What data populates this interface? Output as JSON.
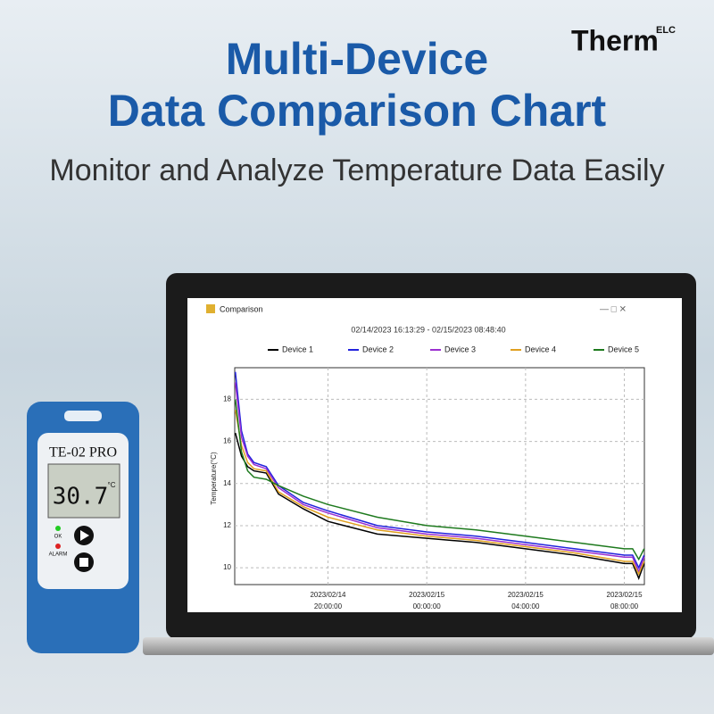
{
  "header": {
    "title_line1": "Multi-Device",
    "title_line2": "Data Comparison Chart",
    "subtitle": "Monitor and Analyze Temperature Data Easily",
    "logo": "Therm",
    "logo_sup": "ELC"
  },
  "device": {
    "model": "TE-02 PRO",
    "reading": "30.7",
    "unit": "°C",
    "ok": "OK",
    "alarm": "ALARM"
  },
  "window": {
    "title": "Comparison"
  },
  "chart_data": {
    "type": "line",
    "title": "02/14/2023 16:13:29 - 02/15/2023 08:48:40",
    "y_label": "Temperature(°C)",
    "x": [
      "2023/02/14 16:15:00",
      "2023/02/14 16:30:00",
      "2023/02/14 16:45:00",
      "2023/02/14 17:00:00",
      "2023/02/14 17:30:00",
      "2023/02/14 18:00:00",
      "2023/02/14 19:00:00",
      "2023/02/14 20:00:00",
      "2023/02/14 22:00:00",
      "2023/02/15 00:00:00",
      "2023/02/15 02:00:00",
      "2023/02/15 04:00:00",
      "2023/02/15 06:00:00",
      "2023/02/15 08:00:00",
      "2023/02/15 08:20:00",
      "2023/02/15 08:35:00",
      "2023/02/15 08:48:00"
    ],
    "series": [
      {
        "name": "Device 1",
        "color": "#000000",
        "values": [
          16.4,
          15.3,
          14.8,
          14.6,
          14.5,
          13.5,
          12.8,
          12.2,
          11.6,
          11.4,
          11.2,
          10.9,
          10.6,
          10.2,
          10.2,
          9.5,
          10.2
        ]
      },
      {
        "name": "Device 2",
        "color": "#2222dd",
        "values": [
          19.3,
          16.5,
          15.4,
          15.0,
          14.8,
          13.9,
          13.1,
          12.7,
          12.0,
          11.7,
          11.5,
          11.2,
          10.9,
          10.6,
          10.6,
          10.0,
          10.6
        ]
      },
      {
        "name": "Device 3",
        "color": "#9b30d0",
        "values": [
          18.8,
          16.2,
          15.3,
          14.9,
          14.7,
          13.8,
          13.0,
          12.6,
          11.9,
          11.6,
          11.4,
          11.1,
          10.8,
          10.5,
          10.5,
          9.8,
          10.5
        ]
      },
      {
        "name": "Device 4",
        "color": "#e0a020",
        "values": [
          17.5,
          15.8,
          15.0,
          14.7,
          14.6,
          13.6,
          12.9,
          12.4,
          11.8,
          11.5,
          11.3,
          11.0,
          10.7,
          10.3,
          10.3,
          9.7,
          10.3
        ]
      },
      {
        "name": "Device 5",
        "color": "#1e7a1e",
        "values": [
          18.0,
          15.5,
          14.6,
          14.3,
          14.2,
          13.9,
          13.4,
          13.0,
          12.4,
          12.0,
          11.8,
          11.5,
          11.2,
          10.9,
          10.9,
          10.4,
          10.9
        ]
      }
    ],
    "xlim": [
      "2023/02/14 16:13:29",
      "2023/02/15 08:48:40"
    ],
    "xticks": [
      "2023/02/14 20:00:00",
      "2023/02/15 00:00:00",
      "2023/02/15 04:00:00",
      "2023/02/15 08:00:00"
    ],
    "ylim": [
      9.2,
      19.5
    ],
    "yticks": [
      10,
      12,
      14,
      16,
      18
    ],
    "grid": true
  }
}
